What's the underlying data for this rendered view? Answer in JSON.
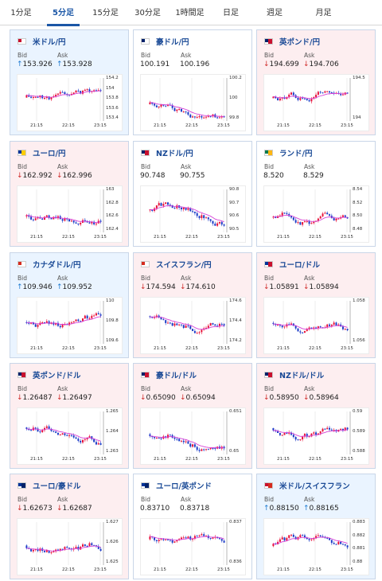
{
  "tabs": [
    "1分足",
    "5分足",
    "15分足",
    "30分足",
    "1時間足",
    "日足",
    "週足",
    "月足"
  ],
  "active_tab": 1,
  "labels": {
    "bid": "Bid",
    "ask": "Ask"
  },
  "cards": [
    {
      "name": "米ドル/円",
      "flag": [
        "#c8102e",
        "#ffffff"
      ],
      "trend": "up",
      "bid": "153.926",
      "ask": "153.928",
      "y_ticks": [
        "154.2",
        "154",
        "153.8",
        "153.6",
        "153.4"
      ],
      "x_ticks": [
        "21:15",
        "22:15",
        "23:15"
      ]
    },
    {
      "name": "豪ドル/円",
      "flag": [
        "#012169",
        "#ffffff"
      ],
      "trend": "none",
      "bid": "100.191",
      "ask": "100.196",
      "y_ticks": [
        "100.2",
        "100",
        "99.8"
      ],
      "x_ticks": [
        "21:15",
        "22:15",
        "23:15"
      ]
    },
    {
      "name": "英ポンド/円",
      "flag": [
        "#012169",
        "#c8102e"
      ],
      "trend": "down",
      "bid": "194.699",
      "ask": "194.706",
      "y_ticks": [
        "194.5",
        "194"
      ],
      "x_ticks": [
        "21:15",
        "22:15",
        "23:15"
      ]
    },
    {
      "name": "ユーロ/円",
      "flag": [
        "#003399",
        "#ffcc00"
      ],
      "trend": "down",
      "bid": "162.992",
      "ask": "162.996",
      "y_ticks": [
        "163",
        "162.8",
        "162.6",
        "162.4"
      ],
      "x_ticks": [
        "21:15",
        "22:15",
        "23:15"
      ]
    },
    {
      "name": "NZドル/円",
      "flag": [
        "#012169",
        "#c8102e"
      ],
      "trend": "none",
      "bid": "90.748",
      "ask": "90.755",
      "y_ticks": [
        "90.8",
        "90.7",
        "90.6",
        "90.5"
      ],
      "x_ticks": [
        "21:15",
        "22:15",
        "23:15"
      ]
    },
    {
      "name": "ランド/円",
      "flag": [
        "#007a4d",
        "#ffb612"
      ],
      "trend": "none",
      "bid": "8.520",
      "ask": "8.529",
      "y_ticks": [
        "8.54",
        "8.52",
        "8.50",
        "8.48"
      ],
      "x_ticks": [
        "21:15",
        "22:15",
        "23:15"
      ]
    },
    {
      "name": "カナダドル/円",
      "flag": [
        "#d52b1e",
        "#ffffff"
      ],
      "trend": "up",
      "bid": "109.946",
      "ask": "109.952",
      "y_ticks": [
        "110",
        "109.8",
        "109.6"
      ],
      "x_ticks": [
        "21:15",
        "22:15",
        "23:15"
      ]
    },
    {
      "name": "スイスフラン/円",
      "flag": [
        "#d52b1e",
        "#ffffff"
      ],
      "trend": "down",
      "bid": "174.594",
      "ask": "174.610",
      "y_ticks": [
        "174.6",
        "174.4",
        "174.2"
      ],
      "x_ticks": [
        "21:15",
        "22:15",
        "23:15"
      ]
    },
    {
      "name": "ユーロ/ドル",
      "flag": [
        "#003399",
        "#c8102e"
      ],
      "trend": "down",
      "bid": "1.05891",
      "ask": "1.05894",
      "y_ticks": [
        "1.058",
        "1.056"
      ],
      "x_ticks": [
        "21:15",
        "22:15",
        "23:15"
      ]
    },
    {
      "name": "英ポンド/ドル",
      "flag": [
        "#012169",
        "#c8102e"
      ],
      "trend": "down",
      "bid": "1.26487",
      "ask": "1.26497",
      "y_ticks": [
        "1.265",
        "1.264",
        "1.263"
      ],
      "x_ticks": [
        "21:15",
        "22:15",
        "23:15"
      ]
    },
    {
      "name": "豪ドル/ドル",
      "flag": [
        "#012169",
        "#c8102e"
      ],
      "trend": "down",
      "bid": "0.65090",
      "ask": "0.65094",
      "y_ticks": [
        "0.651",
        "0.65"
      ],
      "x_ticks": [
        "21:15",
        "22:15",
        "23:15"
      ]
    },
    {
      "name": "NZドル/ドル",
      "flag": [
        "#012169",
        "#c8102e"
      ],
      "trend": "down",
      "bid": "0.58950",
      "ask": "0.58964",
      "y_ticks": [
        "0.59",
        "0.589",
        "0.588"
      ],
      "x_ticks": [
        "21:15",
        "22:15",
        "23:15"
      ]
    },
    {
      "name": "ユーロ/豪ドル",
      "flag": [
        "#003399",
        "#012169"
      ],
      "trend": "down",
      "bid": "1.62673",
      "ask": "1.62687",
      "y_ticks": [
        "1.627",
        "1.626",
        "1.625"
      ],
      "x_ticks": [
        "21:15",
        "22:15",
        "23:15"
      ]
    },
    {
      "name": "ユーロ/英ポンド",
      "flag": [
        "#003399",
        "#012169"
      ],
      "trend": "none",
      "bid": "0.83710",
      "ask": "0.83718",
      "y_ticks": [
        "0.837",
        "0.836"
      ],
      "x_ticks": [
        "21:15",
        "22:15",
        "23:15"
      ]
    },
    {
      "name": "米ドル/スイスフラン",
      "flag": [
        "#c8102e",
        "#d52b1e"
      ],
      "trend": "up",
      "bid": "0.88150",
      "ask": "0.88165",
      "y_ticks": [
        "0.883",
        "0.882",
        "0.881",
        "0.88"
      ],
      "x_ticks": [
        "21:15",
        "22:15",
        "23:15"
      ]
    }
  ]
}
